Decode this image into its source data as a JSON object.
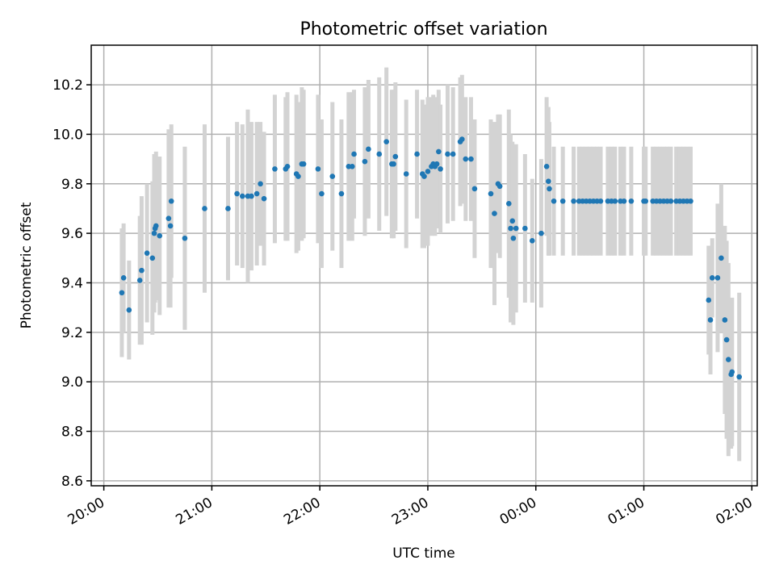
{
  "chart_data": {
    "type": "scatter",
    "title": "Photometric offset variation",
    "xlabel": "UTC time",
    "ylabel": "Photometric offset",
    "x_ticks": [
      "20:00",
      "21:00",
      "22:00",
      "23:00",
      "00:00",
      "01:00",
      "02:00"
    ],
    "x_tick_minutes": [
      0,
      60,
      120,
      180,
      240,
      300,
      360
    ],
    "y_ticks": [
      "8.6",
      "8.8",
      "9.0",
      "9.2",
      "9.4",
      "9.6",
      "9.8",
      "10.0",
      "10.2"
    ],
    "xlim_minutes": [
      -7,
      363
    ],
    "ylim": [
      8.58,
      10.36
    ],
    "grid": true,
    "marker_color": "#1f77b4",
    "errorbar_color": "#d3d3d3",
    "x_unit": "minutes after 20:00 UTC",
    "series": [
      {
        "points": [
          [
            10,
            9.36,
            0.26
          ],
          [
            11,
            9.42,
            0.22
          ],
          [
            14,
            9.29,
            0.2
          ],
          [
            20,
            9.41,
            0.26
          ],
          [
            21,
            9.45,
            0.3
          ],
          [
            24,
            9.52,
            0.28
          ],
          [
            27,
            9.5,
            0.31
          ],
          [
            28,
            9.6,
            0.32
          ],
          [
            28.5,
            9.62,
            0.3
          ],
          [
            29,
            9.63,
            0.3
          ],
          [
            31,
            9.59,
            0.32
          ],
          [
            36,
            9.66,
            0.36
          ],
          [
            37,
            9.63,
            0.33
          ],
          [
            37.5,
            9.73,
            0.31
          ],
          [
            45,
            9.58,
            0.37
          ],
          [
            56,
            9.7,
            0.34
          ],
          [
            69,
            9.7,
            0.29
          ],
          [
            74,
            9.76,
            0.29
          ],
          [
            77,
            9.75,
            0.29
          ],
          [
            80,
            9.75,
            0.35
          ],
          [
            82,
            9.75,
            0.3
          ],
          [
            85,
            9.76,
            0.29
          ],
          [
            87,
            9.8,
            0.25
          ],
          [
            89,
            9.74,
            0.27
          ],
          [
            95,
            9.86,
            0.3
          ],
          [
            101,
            9.86,
            0.29
          ],
          [
            102,
            9.87,
            0.3
          ],
          [
            107,
            9.84,
            0.32
          ],
          [
            108,
            9.83,
            0.3
          ],
          [
            110,
            9.88,
            0.31
          ],
          [
            111,
            9.88,
            0.3
          ],
          [
            119,
            9.86,
            0.3
          ],
          [
            121,
            9.76,
            0.3
          ],
          [
            127,
            9.83,
            0.3
          ],
          [
            132,
            9.76,
            0.3
          ],
          [
            136,
            9.87,
            0.3
          ],
          [
            138,
            9.87,
            0.3
          ],
          [
            139,
            9.92,
            0.26
          ],
          [
            145,
            9.89,
            0.3
          ],
          [
            147,
            9.94,
            0.28
          ],
          [
            153,
            9.92,
            0.31
          ],
          [
            157,
            9.97,
            0.3
          ],
          [
            160,
            9.88,
            0.3
          ],
          [
            161,
            9.88,
            0.3
          ],
          [
            162,
            9.91,
            0.3
          ],
          [
            168,
            9.84,
            0.3
          ],
          [
            174,
            9.92,
            0.26
          ],
          [
            177,
            9.84,
            0.3
          ],
          [
            178,
            9.83,
            0.29
          ],
          [
            180,
            9.85,
            0.3
          ],
          [
            182,
            9.87,
            0.28
          ],
          [
            183,
            9.88,
            0.28
          ],
          [
            184,
            9.87,
            0.28
          ],
          [
            185,
            9.88,
            0.26
          ],
          [
            186,
            9.93,
            0.25
          ],
          [
            187,
            9.86,
            0.26
          ],
          [
            191,
            9.92,
            0.28
          ],
          [
            194,
            9.92,
            0.27
          ],
          [
            198,
            9.97,
            0.26
          ],
          [
            199,
            9.98,
            0.26
          ],
          [
            201,
            9.9,
            0.25
          ],
          [
            204,
            9.9,
            0.25
          ],
          [
            206,
            9.78,
            0.28
          ],
          [
            215,
            9.76,
            0.3
          ],
          [
            217,
            9.68,
            0.37
          ],
          [
            219,
            9.8,
            0.28
          ],
          [
            220,
            9.79,
            0.29
          ],
          [
            225,
            9.72,
            0.38
          ],
          [
            226,
            9.62,
            0.38
          ],
          [
            227,
            9.65,
            0.32
          ],
          [
            227.5,
            9.58,
            0.35
          ],
          [
            229,
            9.62,
            0.34
          ],
          [
            234,
            9.62,
            0.3
          ],
          [
            238,
            9.57,
            0.25
          ],
          [
            243,
            9.6,
            0.3
          ],
          [
            246,
            9.87,
            0.28
          ],
          [
            247,
            9.81,
            0.3
          ],
          [
            247.5,
            9.78,
            0.27
          ],
          [
            250,
            9.73,
            0.22
          ],
          [
            255,
            9.73,
            0.22
          ],
          [
            261,
            9.73,
            0.22
          ],
          [
            264,
            9.73,
            0.22
          ],
          [
            266,
            9.73,
            0.22
          ],
          [
            268,
            9.73,
            0.22
          ],
          [
            270,
            9.73,
            0.22
          ],
          [
            272,
            9.73,
            0.22
          ],
          [
            274,
            9.73,
            0.22
          ],
          [
            276,
            9.73,
            0.22
          ],
          [
            280,
            9.73,
            0.22
          ],
          [
            282,
            9.73,
            0.22
          ],
          [
            284,
            9.73,
            0.22
          ],
          [
            287,
            9.73,
            0.22
          ],
          [
            289,
            9.73,
            0.22
          ],
          [
            293,
            9.73,
            0.22
          ],
          [
            300,
            9.73,
            0.22
          ],
          [
            301,
            9.73,
            0.22
          ],
          [
            305,
            9.73,
            0.22
          ],
          [
            307,
            9.73,
            0.22
          ],
          [
            309,
            9.73,
            0.22
          ],
          [
            311,
            9.73,
            0.22
          ],
          [
            313,
            9.73,
            0.22
          ],
          [
            315,
            9.73,
            0.22
          ],
          [
            318,
            9.73,
            0.22
          ],
          [
            320,
            9.73,
            0.22
          ],
          [
            322,
            9.73,
            0.22
          ],
          [
            324,
            9.73,
            0.22
          ],
          [
            326,
            9.73,
            0.22
          ],
          [
            336,
            9.33,
            0.22
          ],
          [
            337,
            9.25,
            0.22
          ],
          [
            338,
            9.42,
            0.16
          ],
          [
            341,
            9.42,
            0.3
          ],
          [
            343,
            9.5,
            0.3
          ],
          [
            345,
            9.25,
            0.38
          ],
          [
            346,
            9.17,
            0.4
          ],
          [
            347,
            9.09,
            0.39
          ],
          [
            348.5,
            9.03,
            0.3
          ],
          [
            349,
            9.04,
            0.3
          ],
          [
            353,
            9.02,
            0.34
          ]
        ]
      }
    ]
  }
}
